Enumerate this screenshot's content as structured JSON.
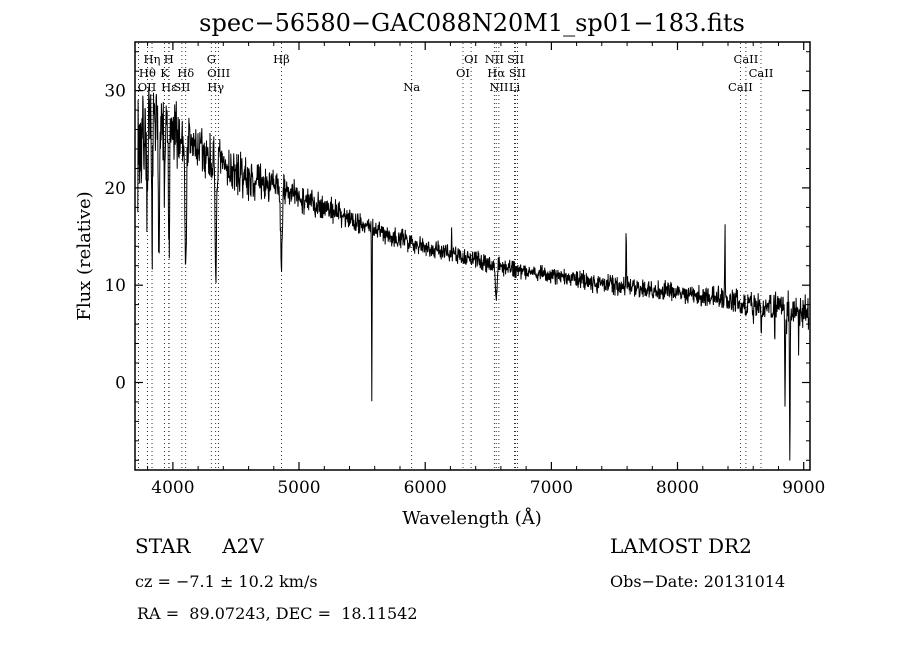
{
  "annotations": {
    "classification": "STAR     A2V",
    "survey": "LAMOST DR2",
    "cz": "cz = −7.1 ± 10.2 km/s",
    "obs_date": "Obs−Date: 20131014",
    "ra_dec": "RA =  89.07243, DEC =  18.11542"
  },
  "colors": {
    "foreground": "#000000",
    "background": "#ffffff",
    "spectrum_line": "#000000",
    "marker_line": "#000000"
  },
  "line_markers": [
    {
      "label": "OII",
      "wavelength": 3727,
      "row": 3
    },
    {
      "label": "Hθ",
      "wavelength": 3798,
      "row": 2
    },
    {
      "label": "Hη",
      "wavelength": 3835,
      "row": 1
    },
    {
      "label": "K",
      "wavelength": 3934,
      "row": 2
    },
    {
      "label": "H",
      "wavelength": 3968,
      "row": 1
    },
    {
      "label": "Hε",
      "wavelength": 3970,
      "row": 3
    },
    {
      "label": "SII",
      "wavelength": 4072,
      "row": 3
    },
    {
      "label": "Hδ",
      "wavelength": 4102,
      "row": 2
    },
    {
      "label": "G",
      "wavelength": 4305,
      "row": 1
    },
    {
      "label": "Hγ",
      "wavelength": 4340,
      "row": 3
    },
    {
      "label": "OIII",
      "wavelength": 4363,
      "row": 2
    },
    {
      "label": "Hβ",
      "wavelength": 4861,
      "row": 1
    },
    {
      "label": "Na",
      "wavelength": 5893,
      "row": 3
    },
    {
      "label": "OI",
      "wavelength": 6300,
      "row": 2
    },
    {
      "label": "OI",
      "wavelength": 6364,
      "row": 1
    },
    {
      "label": "NII",
      "wavelength": 6548,
      "row": 1
    },
    {
      "label": "Hα",
      "wavelength": 6563,
      "row": 2
    },
    {
      "label": "NII",
      "wavelength": 6584,
      "row": 3
    },
    {
      "label": "Li",
      "wavelength": 6708,
      "row": 3
    },
    {
      "label": "SII",
      "wavelength": 6717,
      "row": 1
    },
    {
      "label": "SII",
      "wavelength": 6731,
      "row": 2
    },
    {
      "label": "CaII",
      "wavelength": 8498,
      "row": 3
    },
    {
      "label": "CaII",
      "wavelength": 8542,
      "row": 1
    },
    {
      "label": "CaII",
      "wavelength": 8662,
      "row": 2
    }
  ],
  "chart_data": {
    "type": "line",
    "title": "spec−56580−GAC088N20M1_sp01−183.fits",
    "xlabel": "Wavelength (Å)",
    "ylabel": "Flux (relative)",
    "series_name": "flux",
    "xlim": [
      3700,
      9050
    ],
    "ylim": [
      -9,
      35
    ],
    "x_ticks": [
      4000,
      5000,
      6000,
      7000,
      8000,
      9000
    ],
    "y_ticks": [
      0,
      10,
      20,
      30
    ],
    "x_minor_step": 200,
    "y_minor_step": 2,
    "grid": false,
    "legend": "none",
    "sampling_step": 2.5,
    "seed": 7,
    "continuum_anchors": [
      [
        3700,
        23.5
      ],
      [
        3750,
        25.0
      ],
      [
        3800,
        26.0
      ],
      [
        3900,
        26.3
      ],
      [
        4000,
        25.5
      ],
      [
        4150,
        24.5
      ],
      [
        4300,
        23.0
      ],
      [
        4500,
        21.5
      ],
      [
        4700,
        20.5
      ],
      [
        4861,
        20.0
      ],
      [
        5000,
        19.0
      ],
      [
        5250,
        17.8
      ],
      [
        5500,
        16.3
      ],
      [
        5750,
        15.0
      ],
      [
        6000,
        14.0
      ],
      [
        6250,
        13.0
      ],
      [
        6500,
        12.3
      ],
      [
        6750,
        11.6
      ],
      [
        7000,
        11.0
      ],
      [
        7250,
        10.5
      ],
      [
        7500,
        10.0
      ],
      [
        7750,
        9.6
      ],
      [
        8000,
        9.2
      ],
      [
        8250,
        8.8
      ],
      [
        8500,
        8.4
      ],
      [
        8750,
        8.0
      ],
      [
        8900,
        7.7
      ],
      [
        9050,
        7.0
      ]
    ],
    "noise_anchors": [
      [
        3700,
        7.5
      ],
      [
        3800,
        6.0
      ],
      [
        3900,
        5.0
      ],
      [
        4000,
        4.2
      ],
      [
        4200,
        3.4
      ],
      [
        4500,
        2.6
      ],
      [
        5000,
        1.8
      ],
      [
        5500,
        1.4
      ],
      [
        6000,
        1.2
      ],
      [
        6500,
        1.1
      ],
      [
        7000,
        1.1
      ],
      [
        7500,
        1.2
      ],
      [
        8000,
        1.3
      ],
      [
        8500,
        1.4
      ],
      [
        8800,
        1.7
      ],
      [
        9050,
        2.2
      ]
    ],
    "absorption_lines": [
      [
        3798,
        9,
        4.5
      ],
      [
        3835,
        10,
        4.5
      ],
      [
        3889,
        11,
        4.5
      ],
      [
        3934,
        7,
        4
      ],
      [
        3970,
        12,
        5
      ],
      [
        4102,
        14,
        5.5
      ],
      [
        4340,
        12,
        6
      ],
      [
        4861,
        8,
        6.5
      ],
      [
        6563,
        3.2,
        7
      ],
      [
        8502,
        1.6,
        5
      ],
      [
        8545,
        1.8,
        5
      ],
      [
        8598,
        1.7,
        5
      ],
      [
        8665,
        1.9,
        5
      ],
      [
        8750,
        1.7,
        6
      ],
      [
        8863,
        1.6,
        6
      ]
    ],
    "spikes": [
      [
        5577,
        -18.5,
        2.2
      ],
      [
        6210,
        2.2,
        2.0
      ],
      [
        7593,
        6.5,
        2.2
      ],
      [
        8376,
        7.5,
        2.2
      ],
      [
        8770,
        -3.5,
        2.0
      ],
      [
        8852,
        -9.5,
        2.2
      ],
      [
        8890,
        -16.5,
        2.6
      ],
      [
        8960,
        -4.5,
        2.0
      ]
    ]
  }
}
